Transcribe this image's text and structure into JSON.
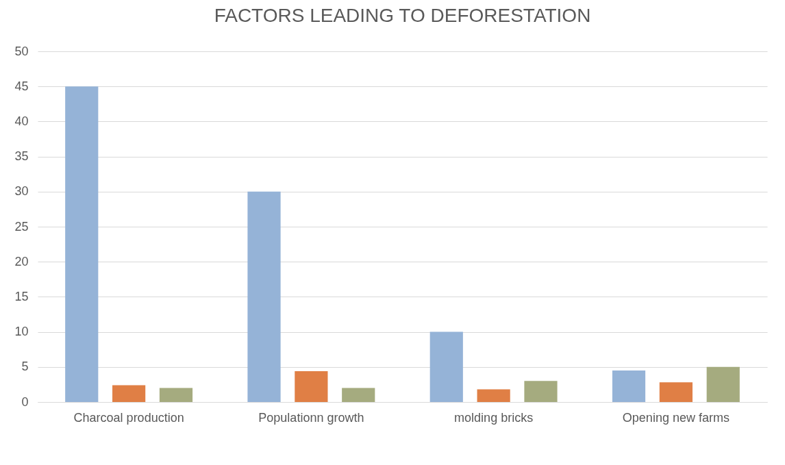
{
  "chart_data": {
    "type": "bar",
    "title": "FACTORS LEADING TO DEFORESTATION",
    "categories": [
      "Charcoal production",
      "Populationn growth",
      "molding bricks",
      "Opening new farms"
    ],
    "series": [
      {
        "color": "#95b3d7",
        "values": [
          45,
          30,
          10,
          4.5
        ]
      },
      {
        "color": "#e07f45",
        "values": [
          2.4,
          4.4,
          1.8,
          2.8
        ]
      },
      {
        "color": "#a5ab7f",
        "values": [
          2,
          2,
          3,
          5
        ]
      }
    ],
    "ylim": [
      0,
      50
    ],
    "yticks": [
      0,
      5,
      10,
      15,
      20,
      25,
      30,
      35,
      40,
      45,
      50
    ],
    "grid": "y"
  }
}
